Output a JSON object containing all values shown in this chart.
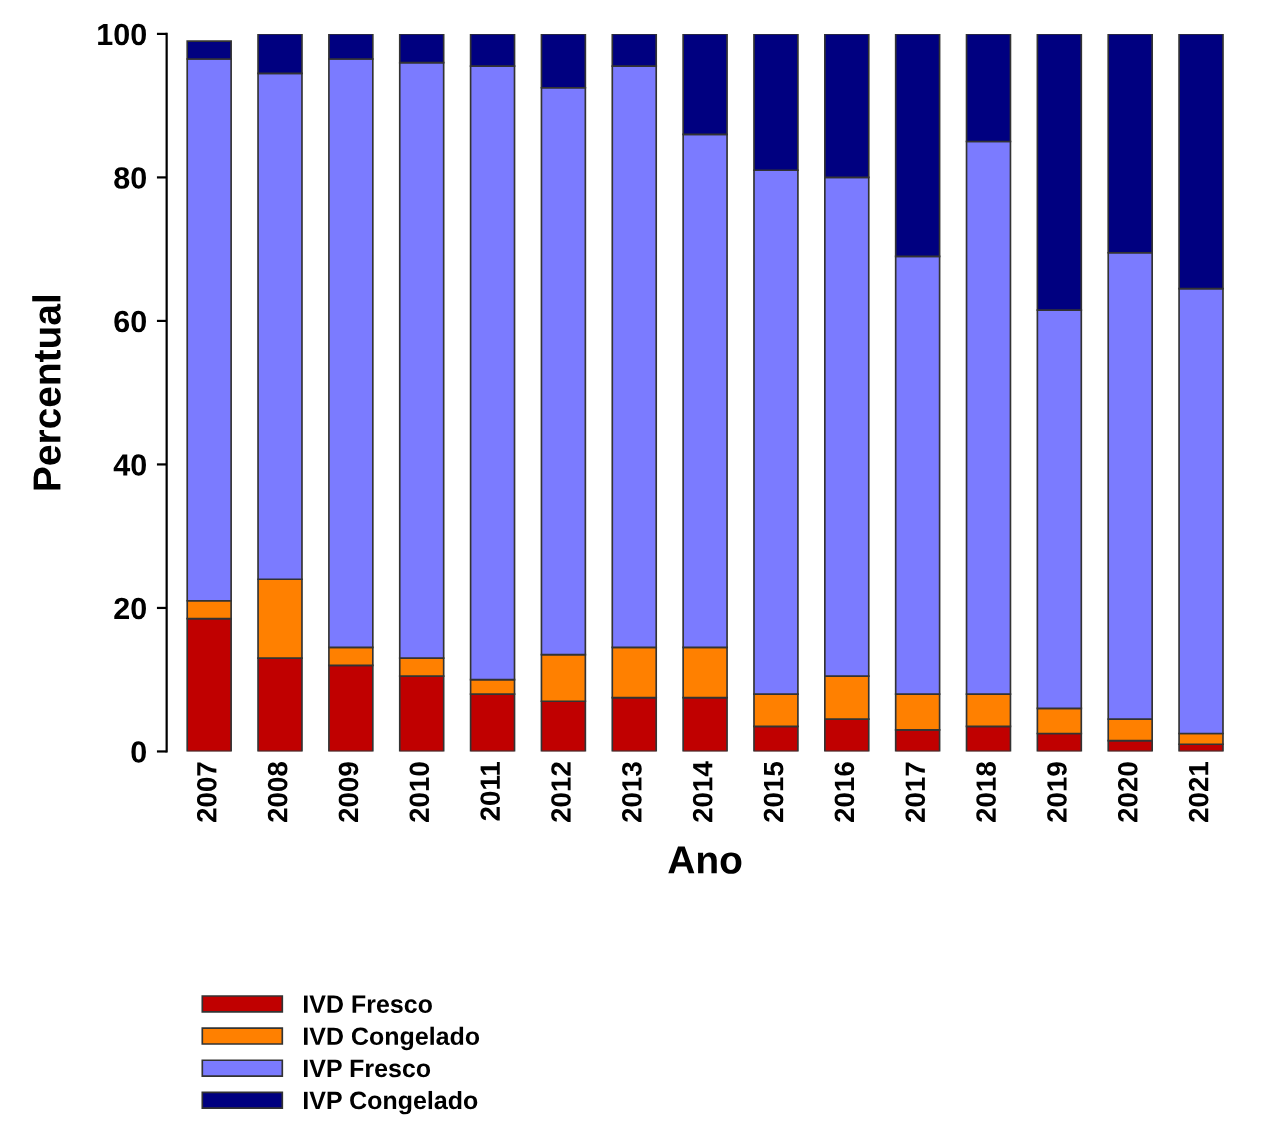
{
  "chart_data": {
    "type": "bar",
    "stacked": true,
    "xlabel": "Ano",
    "ylabel": "Percentual",
    "categories": [
      "2007",
      "2008",
      "2009",
      "2010",
      "2011",
      "2012",
      "2013",
      "2014",
      "2015",
      "2016",
      "2017",
      "2018",
      "2019",
      "2020",
      "2021"
    ],
    "ylim": [
      0,
      100
    ],
    "yticks": [
      0,
      20,
      40,
      60,
      80,
      100
    ],
    "grid": false,
    "legend": "bottom left",
    "series": [
      {
        "name": "IVD Fresco",
        "color": "#c00000",
        "values": [
          18.5,
          13,
          12,
          10.5,
          8,
          7,
          7.5,
          7.5,
          3.5,
          4.5,
          3,
          3.5,
          2.5,
          1.5,
          1
        ]
      },
      {
        "name": "IVD Congelado",
        "color": "#ff8000",
        "values": [
          2.5,
          11,
          2.5,
          2.5,
          2,
          6.5,
          7,
          7,
          4.5,
          6,
          5,
          4.5,
          3.5,
          3,
          1.5
        ]
      },
      {
        "name": "IVP Fresco",
        "color": "#7b7bff",
        "values": [
          75.5,
          70.5,
          82,
          83,
          85.5,
          79,
          81,
          71.5,
          73,
          69.5,
          61,
          77,
          55.5,
          65,
          62
        ]
      },
      {
        "name": "IVP Congelado",
        "color": "#000080",
        "values": [
          2.5,
          5.5,
          3.5,
          4,
          4.5,
          7.5,
          4.5,
          14,
          19,
          20,
          31,
          15,
          38.5,
          30.5,
          35.5
        ]
      }
    ]
  }
}
